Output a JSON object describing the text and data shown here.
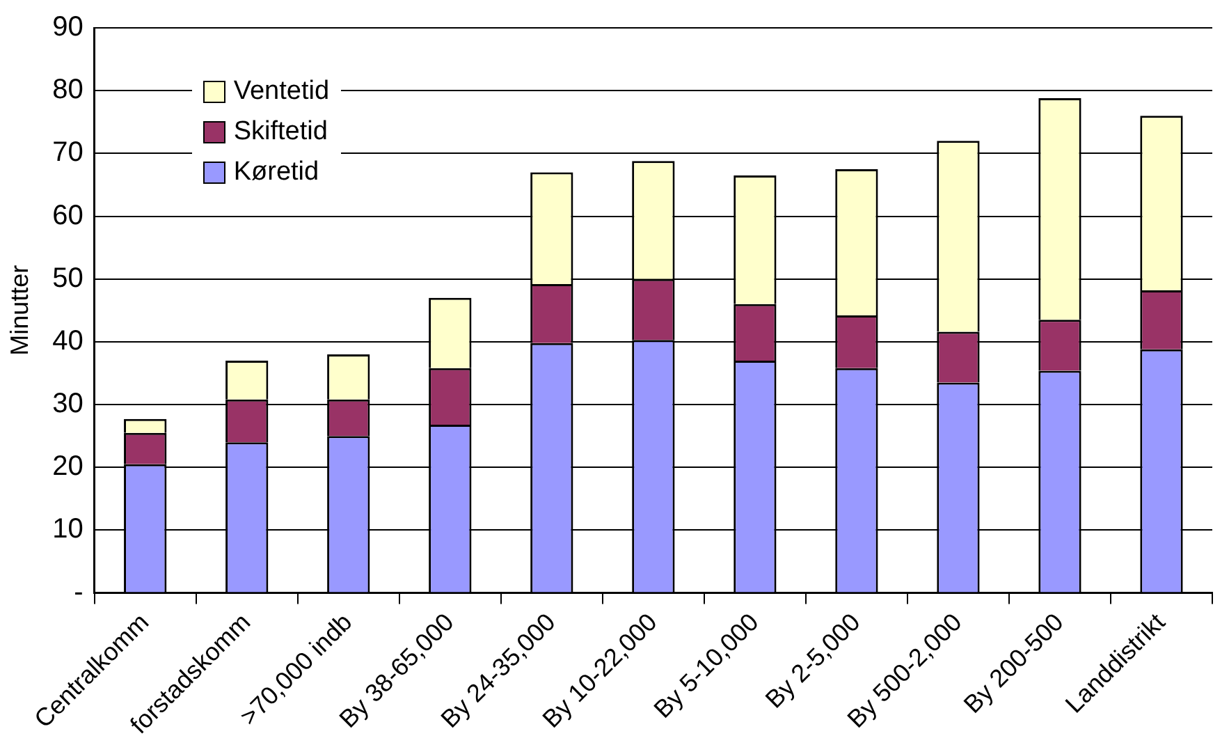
{
  "chart_data": {
    "type": "bar",
    "stacked": true,
    "ylabel": "Minutter",
    "categories": [
      "Centralkomm",
      "forstadskomm",
      ">70,000 indb",
      "By 38-65,000",
      "By 24-35,000",
      "By 10-22,000",
      "By 5-10,000",
      "By 2-5,000",
      "By 500-2,000",
      "By 200-500",
      "Landdistrikt"
    ],
    "series": [
      {
        "name": "Køretid",
        "color": "#9999ff",
        "values": [
          20.5,
          24,
          25,
          26.8,
          39.8,
          40.3,
          37,
          35.8,
          33.5,
          35.4,
          38.8
        ]
      },
      {
        "name": "Skiftetid",
        "color": "#993366",
        "values": [
          5,
          6.8,
          5.8,
          9,
          9.4,
          9.7,
          9,
          8.4,
          8.1,
          8.1,
          9.4
        ]
      },
      {
        "name": "Ventetid",
        "color": "#ffffcc",
        "values": [
          2.2,
          6.2,
          7.2,
          11.2,
          17.8,
          18.8,
          20.5,
          23.3,
          30.4,
          35.3,
          27.8
        ]
      }
    ],
    "ylim": [
      0,
      90
    ],
    "yticks": [
      {
        "value": 0,
        "label": "-"
      },
      10,
      20,
      30,
      40,
      50,
      60,
      70,
      80,
      90
    ],
    "grid": "y",
    "legend": "top left"
  }
}
